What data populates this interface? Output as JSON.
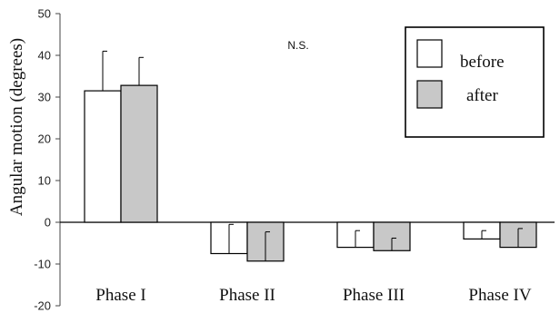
{
  "chart_data": {
    "type": "bar",
    "categories": [
      "Phase I",
      "Phase II",
      "Phase III",
      "Phase IV"
    ],
    "series": [
      {
        "name": "before",
        "values": [
          31.5,
          -7.5,
          -6.0,
          -4.0
        ],
        "errors": [
          9.5,
          7.0,
          4.0,
          2.0
        ],
        "color": "#ffffff"
      },
      {
        "name": "after",
        "values": [
          32.8,
          -9.3,
          -6.8,
          -6.0
        ],
        "errors": [
          6.7,
          7.0,
          3.0,
          4.5
        ],
        "color": "#c8c8c8"
      }
    ],
    "title": "",
    "xlabel": "",
    "ylabel": "Angular motion (degrees)",
    "ylim": [
      -20,
      50
    ],
    "yticks": [
      -20,
      -10,
      0,
      10,
      20,
      30,
      40,
      50
    ],
    "grid": false,
    "legend_position": "top-right",
    "annotations": [
      {
        "text": "N.S."
      }
    ]
  }
}
